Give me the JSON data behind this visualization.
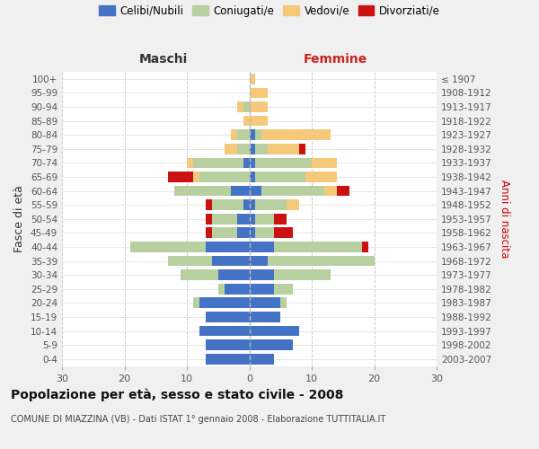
{
  "age_groups": [
    "0-4",
    "5-9",
    "10-14",
    "15-19",
    "20-24",
    "25-29",
    "30-34",
    "35-39",
    "40-44",
    "45-49",
    "50-54",
    "55-59",
    "60-64",
    "65-69",
    "70-74",
    "75-79",
    "80-84",
    "85-89",
    "90-94",
    "95-99",
    "100+"
  ],
  "birth_years": [
    "2003-2007",
    "1998-2002",
    "1993-1997",
    "1988-1992",
    "1983-1987",
    "1978-1982",
    "1973-1977",
    "1968-1972",
    "1963-1967",
    "1958-1962",
    "1953-1957",
    "1948-1952",
    "1943-1947",
    "1938-1942",
    "1933-1937",
    "1928-1932",
    "1923-1927",
    "1918-1922",
    "1913-1917",
    "1908-1912",
    "≤ 1907"
  ],
  "maschi": {
    "celibi": [
      7,
      7,
      8,
      7,
      8,
      4,
      5,
      6,
      7,
      2,
      2,
      1,
      3,
      0,
      1,
      0,
      0,
      0,
      0,
      0,
      0
    ],
    "coniugati": [
      0,
      0,
      0,
      0,
      1,
      1,
      6,
      7,
      12,
      4,
      4,
      5,
      9,
      8,
      8,
      2,
      2,
      0,
      1,
      0,
      0
    ],
    "vedovi": [
      0,
      0,
      0,
      0,
      0,
      0,
      0,
      0,
      0,
      0,
      0,
      0,
      0,
      1,
      1,
      2,
      1,
      1,
      1,
      0,
      0
    ],
    "divorziati": [
      0,
      0,
      0,
      0,
      0,
      0,
      0,
      0,
      0,
      1,
      1,
      1,
      0,
      4,
      0,
      0,
      0,
      0,
      0,
      0,
      0
    ]
  },
  "femmine": {
    "nubili": [
      4,
      7,
      8,
      5,
      5,
      4,
      4,
      3,
      4,
      1,
      1,
      1,
      2,
      1,
      1,
      1,
      1,
      0,
      0,
      0,
      0
    ],
    "coniugate": [
      0,
      0,
      0,
      0,
      1,
      3,
      9,
      17,
      14,
      3,
      3,
      5,
      10,
      8,
      9,
      2,
      1,
      0,
      0,
      0,
      0
    ],
    "vedove": [
      0,
      0,
      0,
      0,
      0,
      0,
      0,
      0,
      0,
      0,
      0,
      2,
      2,
      5,
      4,
      5,
      11,
      3,
      3,
      3,
      1
    ],
    "divorziate": [
      0,
      0,
      0,
      0,
      0,
      0,
      0,
      0,
      1,
      3,
      2,
      0,
      2,
      0,
      0,
      1,
      0,
      0,
      0,
      0,
      0
    ]
  },
  "colors": {
    "celibi_nubili": "#4472c4",
    "coniugati": "#b8cfa0",
    "vedovi": "#f5c87a",
    "divorziati": "#cc1111"
  },
  "xlim": 30,
  "title": "Popolazione per età, sesso e stato civile - 2008",
  "subtitle": "COMUNE DI MIAZZINA (VB) - Dati ISTAT 1° gennaio 2008 - Elaborazione TUTTITALIA.IT",
  "ylabel_left": "Fasce di età",
  "ylabel_right": "Anni di nascita",
  "xlabel_maschi": "Maschi",
  "xlabel_femmine": "Femmine",
  "legend_labels": [
    "Celibi/Nubili",
    "Coniugati/e",
    "Vedovi/e",
    "Divorziati/e"
  ],
  "bg_color": "#f0f0f0",
  "plot_bg": "#ffffff"
}
